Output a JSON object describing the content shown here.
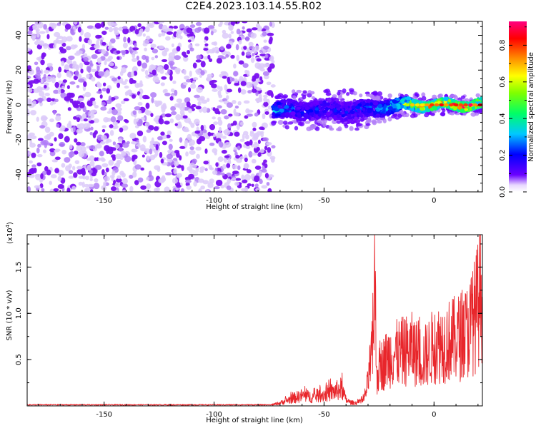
{
  "title": "C2E4.2023.103.14.55.R02",
  "chart_data": [
    {
      "type": "heatmap",
      "xlabel": "Height of straight line (km)",
      "ylabel": "Frequency (Hz)",
      "xlim": [
        -185,
        22
      ],
      "ylim": [
        -50,
        48
      ],
      "x_ticks": [
        -150,
        -100,
        -50,
        0
      ],
      "x_tick_labels": [
        "-150",
        "-100",
        "-50",
        "0"
      ],
      "y_ticks": [
        -40,
        -20,
        0,
        20,
        40
      ],
      "y_tick_labels": [
        "-40",
        "-20",
        "0",
        "20",
        "40"
      ],
      "colorbar": {
        "label": "Normalized spectral amplitude",
        "range": [
          0,
          0.93
        ],
        "ticks": [
          0.0,
          0.2,
          0.4,
          0.6,
          0.8
        ],
        "tick_labels": [
          "0.0",
          "0.2",
          "0.4",
          "0.6",
          "0.8"
        ],
        "colormap": [
          "#ffffff",
          "#6a00ff",
          "#0000ff",
          "#00ffff",
          "#00ff00",
          "#ffff00",
          "#ff7f00",
          "#ff0000",
          "#ff0080"
        ]
      },
      "noise_region": {
        "x_range": [
          -185,
          -73
        ],
        "y_range": [
          -50,
          48
        ],
        "amplitude_range": [
          0.0,
          0.12
        ]
      },
      "signal_band": [
        {
          "x": -73,
          "f_center": -3,
          "width": 8,
          "amp": 0.35
        },
        {
          "x": -65,
          "f_center": -3,
          "width": 10,
          "amp": 0.25
        },
        {
          "x": -55,
          "f_center": -3,
          "width": 10,
          "amp": 0.22
        },
        {
          "x": -45,
          "f_center": -3,
          "width": 10,
          "amp": 0.22
        },
        {
          "x": -38,
          "f_center": -3,
          "width": 11,
          "amp": 0.2
        },
        {
          "x": -30,
          "f_center": -3,
          "width": 9,
          "amp": 0.25
        },
        {
          "x": -22,
          "f_center": -1,
          "width": 8,
          "amp": 0.35
        },
        {
          "x": -15,
          "f_center": 0,
          "width": 6,
          "amp": 0.55
        },
        {
          "x": -8,
          "f_center": 0,
          "width": 6,
          "amp": 0.7
        },
        {
          "x": 0,
          "f_center": 0,
          "width": 5,
          "amp": 0.8
        },
        {
          "x": 8,
          "f_center": 0,
          "width": 5,
          "amp": 0.85
        },
        {
          "x": 15,
          "f_center": 0,
          "width": 5,
          "amp": 0.9
        },
        {
          "x": 22,
          "f_center": 0,
          "width": 5,
          "amp": 0.8
        }
      ]
    },
    {
      "type": "line",
      "xlabel": "Height of straight line (km)",
      "ylabel": "SNR (10 * v/v)",
      "y_multiplier_label": "(x10",
      "y_multiplier_exponent": "4",
      "y_multiplier_suffix": ")",
      "xlim": [
        -185,
        22
      ],
      "ylim": [
        0,
        1.85
      ],
      "x_ticks": [
        -150,
        -100,
        -50,
        0
      ],
      "x_tick_labels": [
        "-150",
        "-100",
        "-50",
        "0"
      ],
      "y_ticks": [
        0.5,
        1.0,
        1.5
      ],
      "y_tick_labels": [
        "0.5",
        "1.0",
        "1.5"
      ],
      "line_color": "#e8262b",
      "series": [
        {
          "x": [
            -185,
            -100,
            -75,
            -70,
            -65,
            -60,
            -55,
            -50,
            -45,
            -42,
            -40,
            -38,
            -36,
            -34,
            -32,
            -30,
            -28,
            -27,
            -26,
            -24,
            -20,
            -15,
            -10,
            -5,
            0,
            5,
            10,
            15,
            18,
            20,
            22
          ],
          "values": [
            0.01,
            0.01,
            0.01,
            0.05,
            0.12,
            0.18,
            0.15,
            0.2,
            0.25,
            0.3,
            0.1,
            0.06,
            0.05,
            0.06,
            0.1,
            0.4,
            0.8,
            1.85,
            0.45,
            0.6,
            0.75,
            0.8,
            0.85,
            0.7,
            0.9,
            0.95,
            1.0,
            1.1,
            1.3,
            1.5,
            1.85
          ]
        }
      ]
    }
  ]
}
